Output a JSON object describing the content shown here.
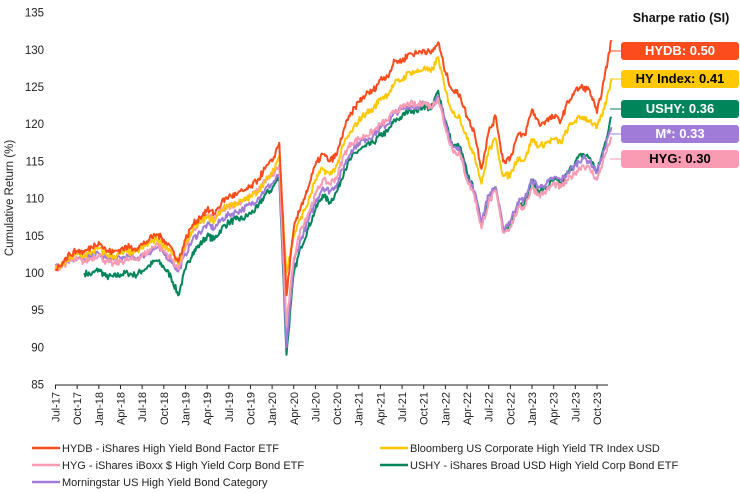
{
  "chart_data": {
    "type": "line",
    "title": "",
    "ylabel": "Cumulative Return (%)",
    "xlabel": "",
    "ylim": [
      85,
      135
    ],
    "yticks": [
      "85",
      "90",
      "95",
      "100",
      "105",
      "110",
      "115",
      "120",
      "125",
      "130",
      "135"
    ],
    "xticks": [
      "Jul-17",
      "Oct-17",
      "Jan-18",
      "Apr-18",
      "Jul-18",
      "Oct-18",
      "Jan-19",
      "Apr-19",
      "Jul-19",
      "Oct-19",
      "Jan-20",
      "Apr-20",
      "Jul-20",
      "Oct-20",
      "Jan-21",
      "Apr-21",
      "Jul-21",
      "Oct-21",
      "Jan-22",
      "Apr-22",
      "Jul-22",
      "Oct-22",
      "Jan-23",
      "Apr-23",
      "Jul-23",
      "Oct-23"
    ],
    "x_range": [
      "2017-07",
      "2023-12"
    ],
    "x_frequency": "monthly (approximate readings)",
    "grid": false,
    "legend_position": "bottom",
    "series": [
      {
        "name": "HYDB - iShares High Yield Bond Factor ETF",
        "color": "#FC4C1D",
        "values": [
          100.5,
          101.5,
          102.5,
          103,
          102.8,
          103.5,
          104.2,
          103,
          102.8,
          103.2,
          103.5,
          103.3,
          103.8,
          104.5,
          105.2,
          104.5,
          103.5,
          101.5,
          104.5,
          106.5,
          107.5,
          108.5,
          108,
          109.5,
          110.3,
          110.5,
          111,
          111.5,
          112.5,
          114,
          115,
          117.5,
          97,
          106,
          109,
          111.5,
          114.5,
          116,
          115,
          116,
          119.5,
          121.5,
          123,
          124,
          124.5,
          126,
          126.5,
          128.5,
          128.5,
          129.5,
          129.5,
          130,
          129.5,
          131,
          127,
          124.5,
          124,
          121,
          119,
          114,
          119,
          121,
          115,
          115.5,
          118.5,
          118.5,
          122,
          120,
          120.5,
          121,
          120.5,
          123,
          124.5,
          125,
          124.5,
          121.5,
          126,
          131.3
        ]
      },
      {
        "name": "Bloomberg US Corporate High Yield TR Index USD",
        "color": "#FFC800",
        "values": [
          100.3,
          101.2,
          102,
          102.5,
          102.3,
          102.8,
          103.3,
          102.5,
          102.2,
          102.6,
          102.8,
          102.8,
          103.3,
          104,
          104.6,
          103.8,
          103,
          101.2,
          104,
          105.8,
          106.8,
          107.5,
          107,
          108.5,
          109.2,
          109.3,
          109.7,
          110.2,
          111,
          112.3,
          113.3,
          115.8,
          100,
          105,
          107.5,
          109.5,
          112.5,
          114,
          113.2,
          114.5,
          117.5,
          119,
          120.5,
          121.5,
          122,
          123.5,
          124,
          125.5,
          126,
          127,
          127,
          127.5,
          127,
          129,
          124.5,
          121.5,
          121,
          118,
          116,
          112,
          116.5,
          118,
          113,
          113.2,
          115.5,
          115.2,
          118,
          117,
          117.5,
          118,
          117.5,
          119.5,
          120.5,
          121,
          120.5,
          119.5,
          122,
          126
        ]
      },
      {
        "name": "HYG - iShares iBoxx $ High Yield Corp Bond ETF",
        "color": "#F99BB3",
        "values": [
          100.6,
          101,
          101.6,
          101.8,
          101.5,
          102,
          102.5,
          101.5,
          101.2,
          101.5,
          101.8,
          101.8,
          102.3,
          103,
          104,
          103,
          102,
          100.5,
          103.5,
          105.5,
          106.8,
          107.8,
          107.3,
          108.5,
          109,
          109.3,
          109.8,
          110.3,
          111,
          112.5,
          113,
          114.5,
          93,
          102,
          106,
          108,
          110.5,
          112.5,
          112,
          113,
          116,
          117.5,
          118,
          118.5,
          119,
          120,
          120.5,
          121.8,
          122.2,
          122.8,
          122.5,
          123,
          122.3,
          123.5,
          119.5,
          116.5,
          116,
          112.5,
          110.5,
          106,
          109.5,
          111,
          105.5,
          106.2,
          108.5,
          109,
          111.5,
          110.5,
          111,
          112,
          111.5,
          112.5,
          113.5,
          114.5,
          114,
          112.5,
          115.5,
          118.3
        ]
      },
      {
        "name": "USHY - iShares Broad USD High Yield Corp Bond ETF",
        "color": "#00855A",
        "values": [
          null,
          null,
          null,
          null,
          100,
          99.8,
          100.5,
          99.5,
          99.5,
          99.8,
          100,
          99.7,
          100.3,
          101,
          101.7,
          100.8,
          99.5,
          97,
          100.5,
          102.8,
          103.8,
          105,
          104.5,
          106,
          106.8,
          107.2,
          107.3,
          108,
          108.8,
          110.5,
          111.3,
          113,
          89,
          100,
          103.5,
          106,
          108.5,
          110.5,
          109.5,
          111,
          113.8,
          115.5,
          116.5,
          117,
          117.5,
          118.5,
          119,
          120.5,
          121,
          122,
          121.8,
          122.5,
          122,
          124.5,
          120.5,
          117,
          117,
          113.5,
          111,
          106.5,
          110,
          111.5,
          105.5,
          106.5,
          109,
          109.5,
          112.5,
          111,
          111.5,
          112.5,
          112,
          113.5,
          115,
          116,
          115.5,
          113.5,
          117,
          121
        ]
      },
      {
        "name": "Morningstar US High Yield Bond Category",
        "color": "#A07CD8",
        "values": [
          101,
          101.2,
          101.8,
          102,
          101.8,
          102.3,
          102.6,
          102,
          101.8,
          102,
          102.2,
          102,
          102.3,
          102.8,
          103.4,
          102.6,
          101.8,
          100.2,
          102.5,
          104.5,
          105.5,
          106.5,
          106,
          107.2,
          107.8,
          108.2,
          108.6,
          109.2,
          110,
          111.2,
          112,
          113.2,
          90,
          101.5,
          104.5,
          107,
          109.5,
          111.5,
          111,
          112,
          114.5,
          116.5,
          117.5,
          118,
          118.5,
          119.5,
          120,
          121.5,
          122,
          122.5,
          122.3,
          122.8,
          122.3,
          123.8,
          120,
          117,
          116.5,
          113,
          111,
          107,
          110.5,
          111.5,
          106,
          107,
          109.5,
          110,
          112.5,
          111.5,
          112,
          112.8,
          112.5,
          113.5,
          114.5,
          115.5,
          115,
          113.5,
          116.5,
          119.6
        ]
      }
    ]
  },
  "sharpe": {
    "title": "Sharpe ratio (SI)",
    "badges": [
      {
        "label": "HYDB: 0.50",
        "color": "#FC4C1D",
        "text_color": "#FFFFFF"
      },
      {
        "label": "HY Index: 0.41",
        "color": "#FFC800",
        "text_color": "#000000"
      },
      {
        "label": "USHY: 0.36",
        "color": "#00855A",
        "text_color": "#FFFFFF"
      },
      {
        "label": "M*: 0.33",
        "color": "#A07CD8",
        "text_color": "#FFFFFF"
      },
      {
        "label": "HYG: 0.30",
        "color": "#F99BB3",
        "text_color": "#000000"
      }
    ]
  }
}
